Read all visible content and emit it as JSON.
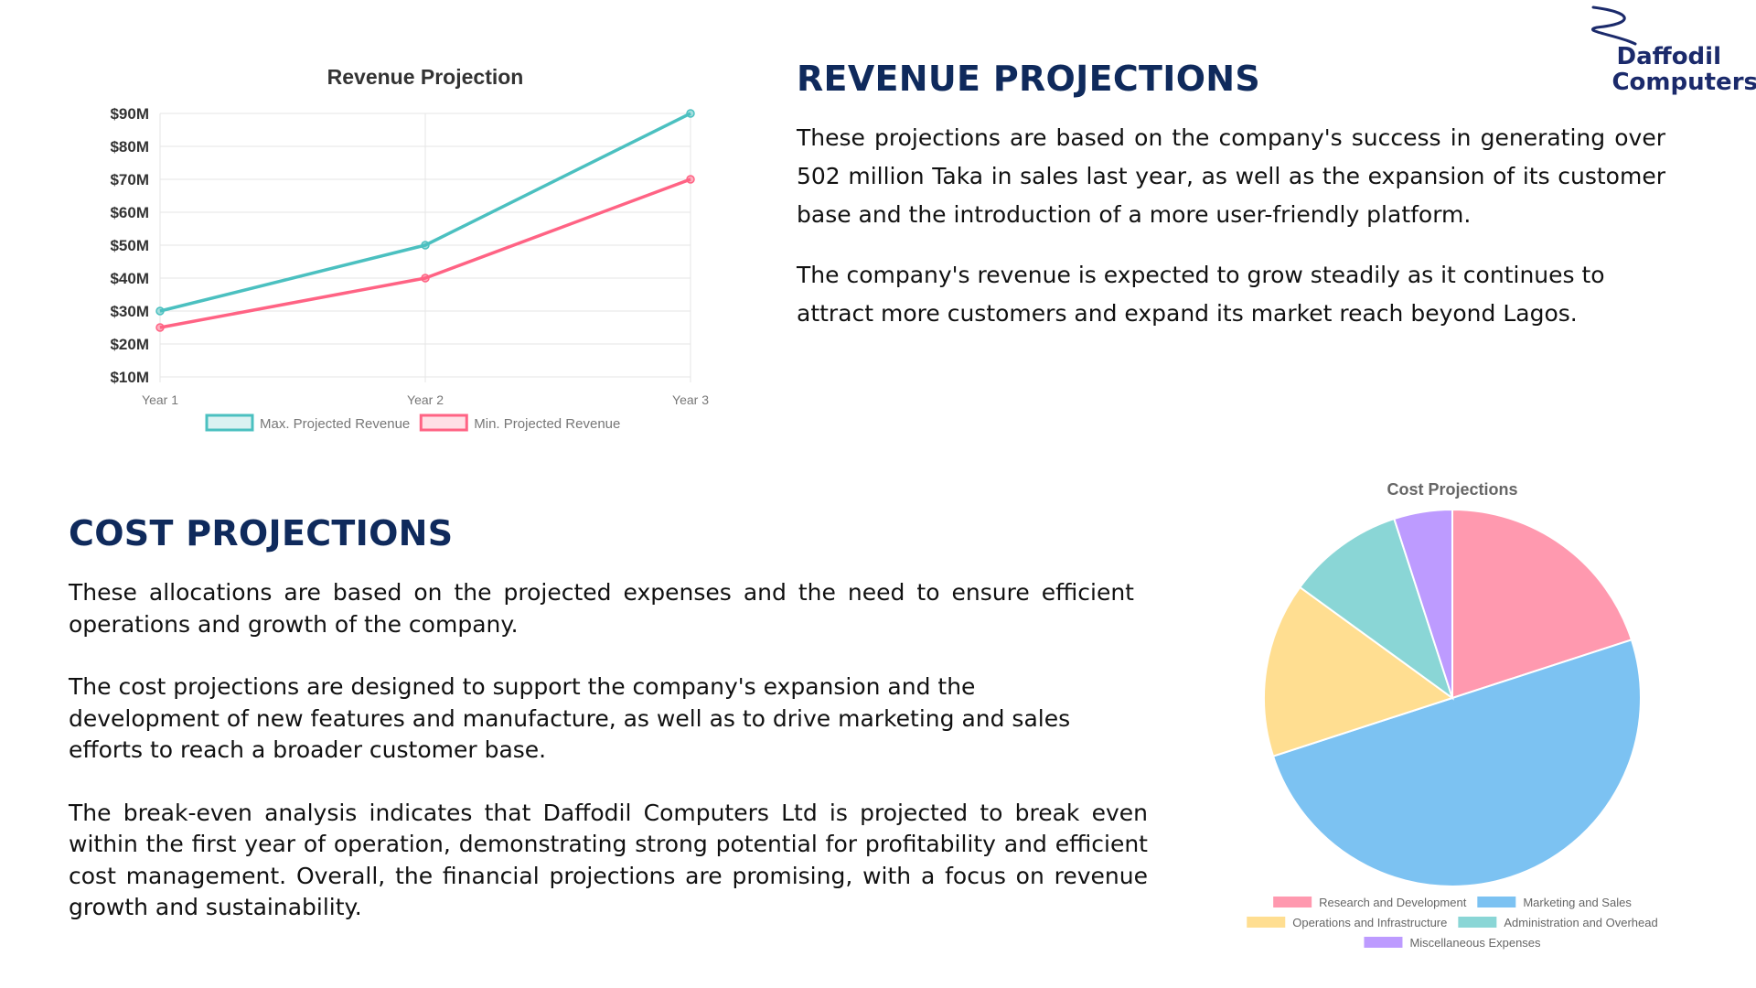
{
  "brand": {
    "line1": "Daffodil",
    "line2": "Computers"
  },
  "revenue": {
    "heading": "REVENUE PROJECTIONS",
    "para1": "These projections are based on the company's success in generating over 502 million Taka in sales last year, as well as the expansion of its customer base and the introduction of a more user-friendly platform.",
    "para2": "The company's revenue is expected to grow steadily as it continues to attract more customers and expand its market reach beyond Lagos."
  },
  "cost": {
    "heading": "COST PROJECTIONS",
    "para1": "These allocations are based on the projected expenses and the need to ensure efficient operations and growth of the company.",
    "para2": "The cost projections are designed to support the company's expansion and the development of new features and manufacture, as well as to drive marketing and sales efforts to reach a broader customer base.",
    "para3": "The break-even analysis indicates that Daffodil Computers Ltd is projected to break even within the first year of operation, demonstrating strong potential for profitability and efficient cost management. Overall, the financial projections are promising, with a focus on revenue growth and sustainability."
  },
  "chart_data": [
    {
      "type": "line",
      "title": "Revenue Projection",
      "x": [
        "Year 1",
        "Year 2",
        "Year 3"
      ],
      "y_ticks": [
        "$90M",
        "$80M",
        "$70M",
        "$60M",
        "$50M",
        "$40M",
        "$30M",
        "$20M",
        "$10M"
      ],
      "ylim": [
        10,
        90
      ],
      "grid": true,
      "legend": "bottom",
      "series": [
        {
          "name": "Max. Projected Revenue",
          "values": [
            30,
            50,
            90
          ],
          "color": "#4bc0c0"
        },
        {
          "name": "Min. Projected Revenue",
          "values": [
            25,
            40,
            70
          ],
          "color": "#ff6384"
        }
      ]
    },
    {
      "type": "pie",
      "title": "Cost Projections",
      "legend": "bottom",
      "slices": [
        {
          "label": "Research and Development",
          "value": 20,
          "color": "#ff6384"
        },
        {
          "label": "Marketing and Sales",
          "value": 50,
          "color": "#36a2eb"
        },
        {
          "label": "Operations and Infrastructure",
          "value": 15,
          "color": "#ffcd56"
        },
        {
          "label": "Administration and Overhead",
          "value": 10,
          "color": "#4bc0c0"
        },
        {
          "label": "Miscellaneous Expenses",
          "value": 5,
          "color": "#9966ff"
        }
      ]
    }
  ]
}
